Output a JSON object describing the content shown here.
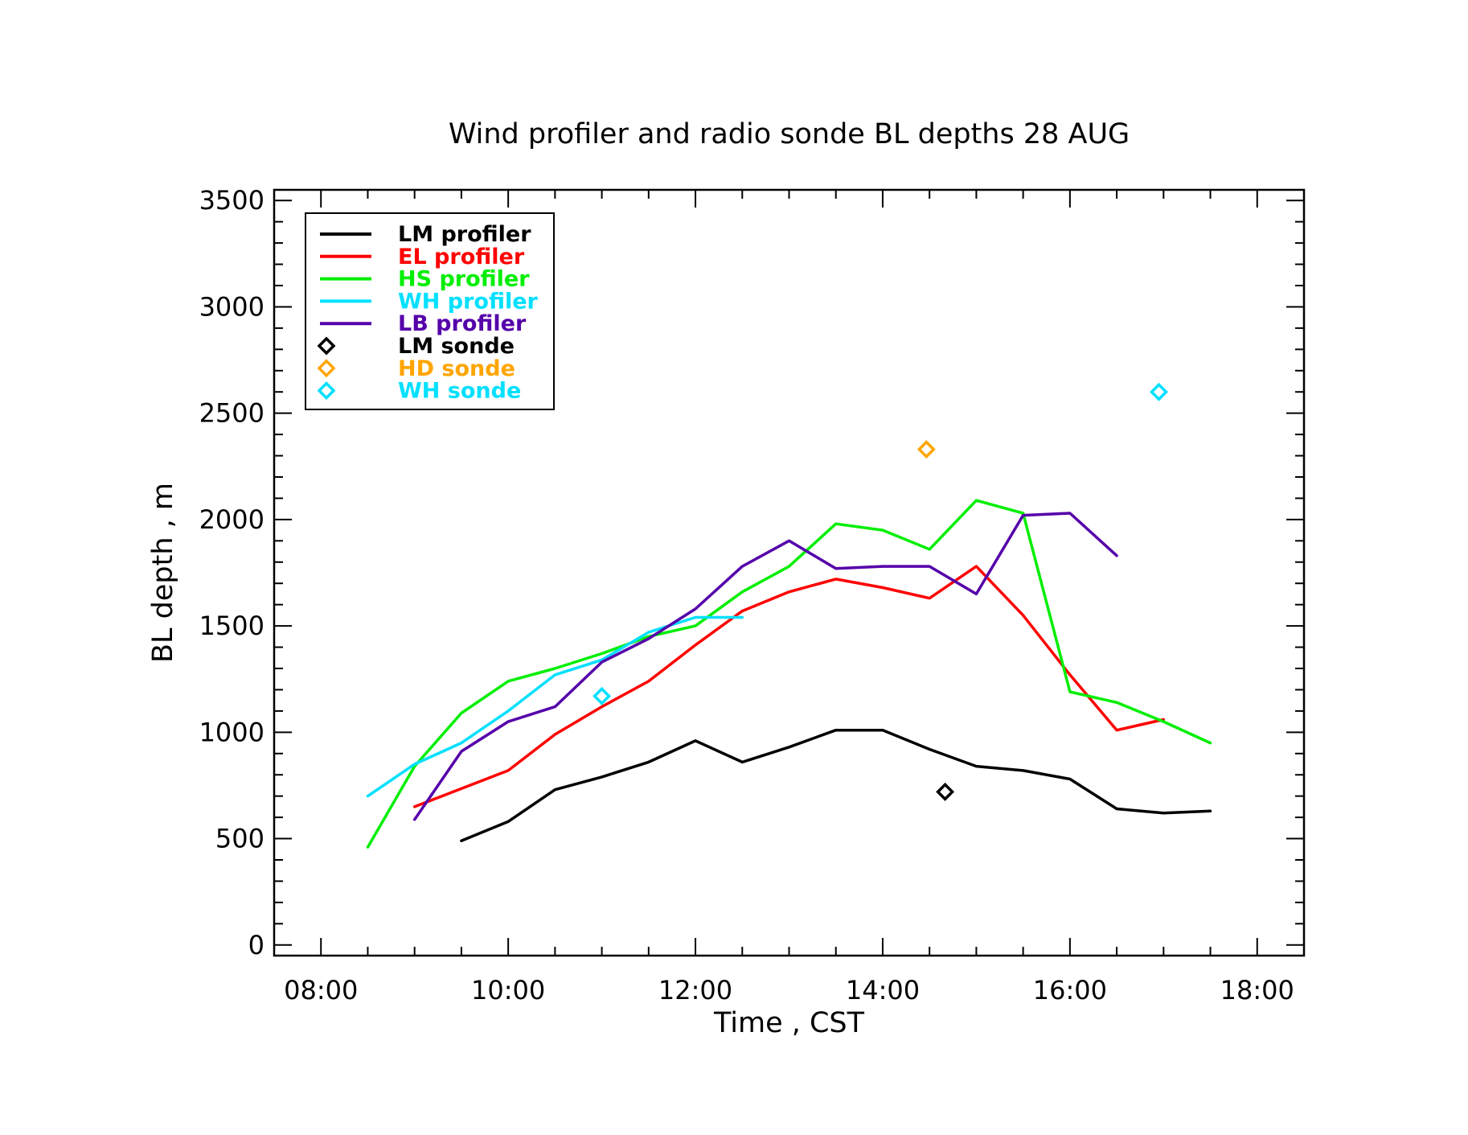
{
  "chart_data": {
    "type": "line",
    "title": "Wind profiler and radio sonde BL depths  28 AUG",
    "xlabel": "Time , CST",
    "ylabel": "BL depth , m",
    "xlim": [
      "07:30",
      "18:30"
    ],
    "ylim": [
      -50,
      3550
    ],
    "xticks": [
      "08:00",
      "10:00",
      "12:00",
      "14:00",
      "16:00",
      "18:00"
    ],
    "yticks": [
      0,
      500,
      1000,
      1500,
      2000,
      2500,
      3000,
      3500
    ],
    "grid": false,
    "legend_position": "top-left",
    "series": [
      {
        "name": "LM profiler",
        "kind": "line",
        "color": "#000000",
        "x": [
          "09:30",
          "10:00",
          "10:30",
          "11:00",
          "11:30",
          "12:00",
          "12:30",
          "13:00",
          "13:30",
          "14:00",
          "14:30",
          "15:00",
          "15:30",
          "16:00",
          "16:30",
          "17:00",
          "17:30"
        ],
        "y": [
          490,
          580,
          730,
          790,
          860,
          960,
          860,
          930,
          1010,
          1010,
          920,
          840,
          820,
          780,
          640,
          620,
          630
        ]
      },
      {
        "name": "EL profiler",
        "kind": "line",
        "color": "#ff0000",
        "x": [
          "09:00",
          "10:00",
          "10:30",
          "11:00",
          "11:30",
          "12:00",
          "12:30",
          "13:00",
          "13:30",
          "14:00",
          "14:30",
          "15:00",
          "15:30",
          "16:00",
          "16:30",
          "17:00"
        ],
        "y": [
          650,
          820,
          990,
          1120,
          1240,
          1410,
          1570,
          1660,
          1720,
          1680,
          1630,
          1780,
          1550,
          1270,
          1010,
          1060
        ]
      },
      {
        "name": "HS profiler",
        "kind": "line",
        "color": "#00ee00",
        "x": [
          "08:30",
          "09:00",
          "09:30",
          "10:00",
          "10:30",
          "11:00",
          "11:30",
          "12:00",
          "12:30",
          "13:00",
          "13:30",
          "14:00",
          "14:30",
          "15:00",
          "15:30",
          "16:00",
          "16:30",
          "17:00",
          "17:30"
        ],
        "y": [
          460,
          840,
          1090,
          1240,
          1300,
          1370,
          1450,
          1500,
          1660,
          1780,
          1980,
          1950,
          1860,
          2090,
          2030,
          1190,
          1140,
          1050,
          950
        ]
      },
      {
        "name": "WH profiler",
        "kind": "line",
        "color": "#00e0ff",
        "x": [
          "08:30",
          "09:00",
          "09:30",
          "10:00",
          "10:30",
          "11:00",
          "11:30",
          "12:00",
          "12:30"
        ],
        "y": [
          700,
          850,
          950,
          1100,
          1270,
          1340,
          1470,
          1540,
          1540
        ]
      },
      {
        "name": "LB profiler",
        "kind": "line",
        "color": "#5500aa",
        "x": [
          "09:00",
          "09:30",
          "10:00",
          "10:30",
          "11:00",
          "11:30",
          "12:00",
          "12:30",
          "13:00",
          "13:30",
          "14:00",
          "14:30",
          "15:00",
          "15:30",
          "16:00",
          "16:30"
        ],
        "y": [
          590,
          910,
          1050,
          1120,
          1330,
          1440,
          1580,
          1780,
          1900,
          1770,
          1780,
          1780,
          1650,
          2020,
          2030,
          1830
        ]
      },
      {
        "name": "LM sonde",
        "kind": "marker",
        "color": "#000000",
        "x": [
          "14:40"
        ],
        "y": [
          720
        ]
      },
      {
        "name": "HD sonde",
        "kind": "marker",
        "color": "#ffa500",
        "x": [
          "14:28"
        ],
        "y": [
          2330
        ]
      },
      {
        "name": "WH sonde",
        "kind": "marker",
        "color": "#00e0ff",
        "x": [
          "11:00",
          "16:57"
        ],
        "y": [
          1170,
          2600
        ]
      }
    ]
  }
}
